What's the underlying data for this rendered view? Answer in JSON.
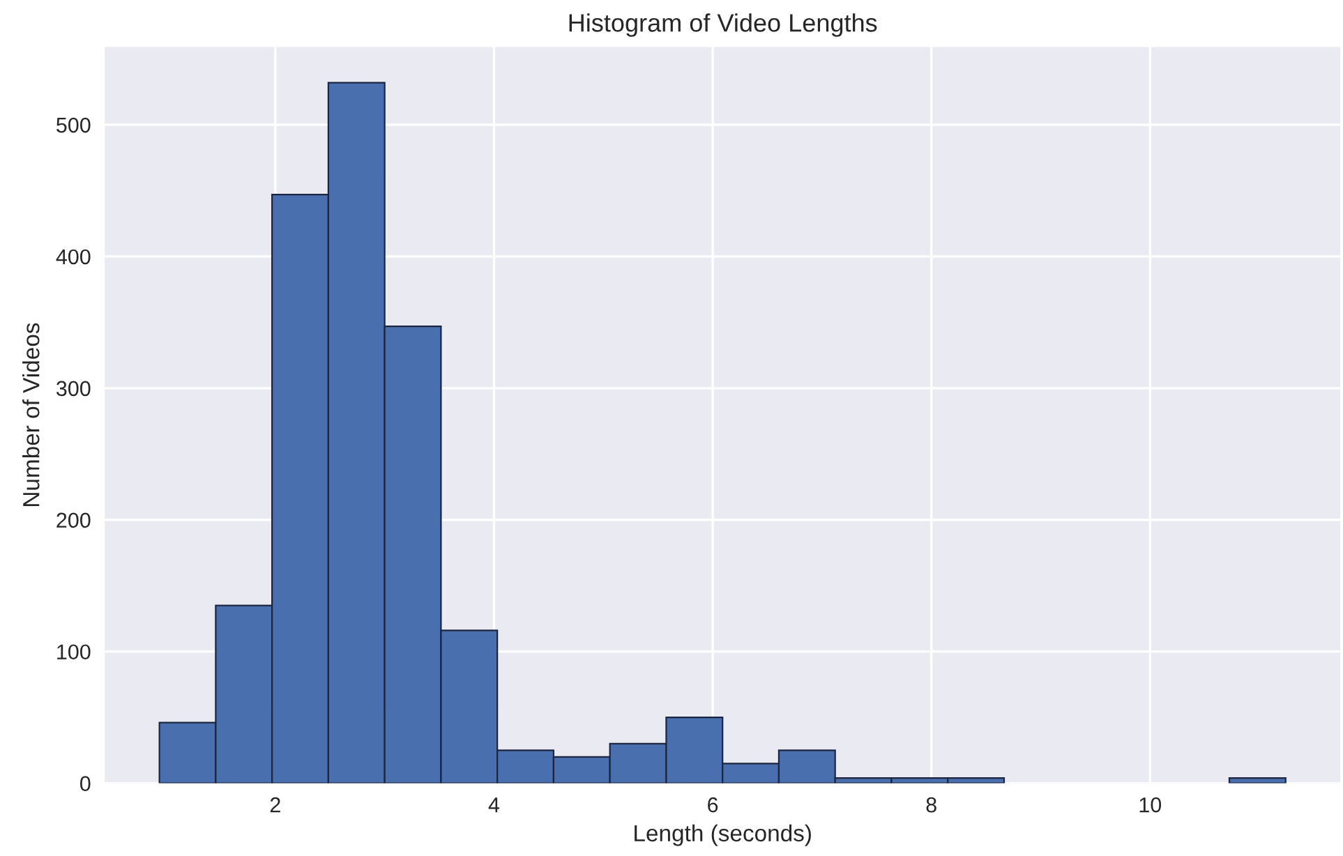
{
  "chart_data": {
    "type": "histogram",
    "title": "Histogram of Video Lengths",
    "xlabel": "Length (seconds)",
    "ylabel": "Number of Videos",
    "bins": [
      0.94,
      1.455,
      1.97,
      2.485,
      3.0,
      3.515,
      4.03,
      4.545,
      5.06,
      5.575,
      6.09,
      6.605,
      7.12,
      7.635,
      8.15,
      8.665,
      9.18,
      9.695,
      10.21,
      10.725,
      11.24
    ],
    "values": [
      46,
      135,
      447,
      532,
      347,
      116,
      25,
      20,
      30,
      50,
      15,
      25,
      4,
      4,
      4,
      0,
      0,
      0,
      0,
      4
    ],
    "color": "#4a6fae",
    "xlim": [
      0.44,
      11.74
    ],
    "xticks": [
      2,
      4,
      6,
      8,
      10
    ],
    "ylim": [
      0,
      559
    ],
    "yticks": [
      0,
      100,
      200,
      300,
      400,
      500
    ],
    "grid": true
  }
}
